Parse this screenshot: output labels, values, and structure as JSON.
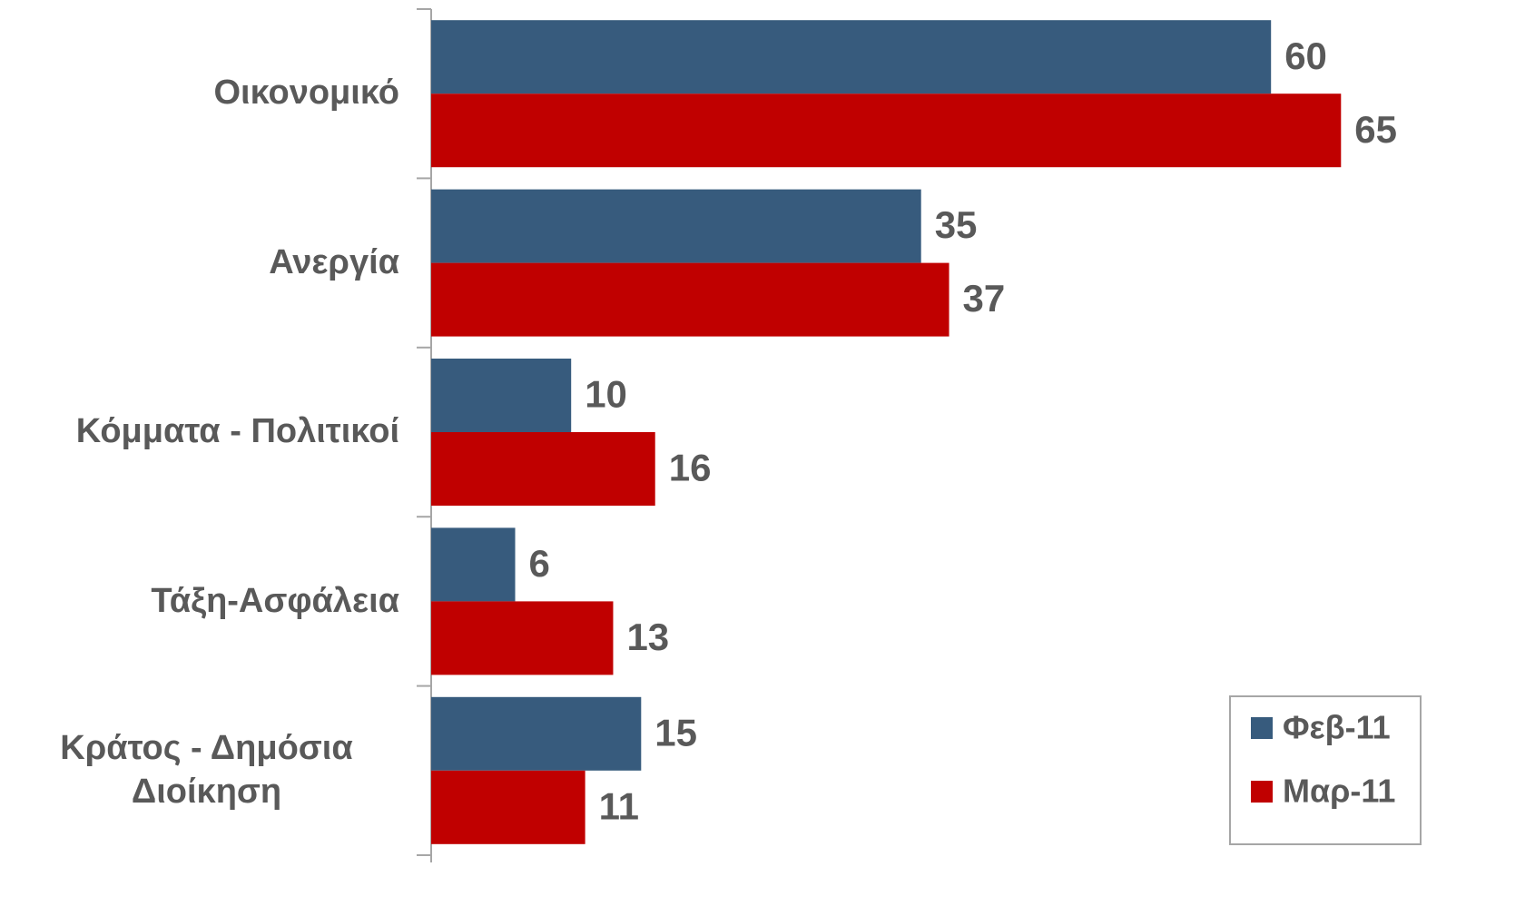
{
  "chart_data": {
    "type": "barh",
    "categories": [
      "Οικονομικό",
      "Ανεργία",
      "Κόμματα - Πολιτικοί",
      "Τάξη-Ασφάλεια",
      "Κράτος - Δημόσια Διοίκηση"
    ],
    "series": [
      {
        "name": "Φεβ-11",
        "color": "#375b7d",
        "values": [
          60,
          35,
          10,
          6,
          15
        ]
      },
      {
        "name": "Μαρ-11",
        "color": "#c00000",
        "values": [
          65,
          37,
          16,
          13,
          11
        ]
      }
    ],
    "xlim": [
      0,
      70
    ],
    "legend": "bottom-right"
  }
}
